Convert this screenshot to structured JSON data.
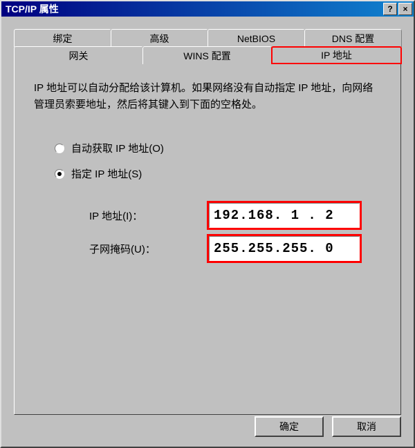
{
  "window": {
    "title": "TCP/IP 属性"
  },
  "titlebar": {
    "help_icon": "?",
    "close_icon": "×"
  },
  "tabs": {
    "back_row": [
      {
        "label": "绑定"
      },
      {
        "label": "高级"
      },
      {
        "label": "NetBIOS"
      },
      {
        "label": "DNS 配置"
      }
    ],
    "front_row": [
      {
        "label": "网关"
      },
      {
        "label": "WINS 配置"
      },
      {
        "label": "IP 地址",
        "active": true
      }
    ]
  },
  "panel": {
    "help_text": "IP 地址可以自动分配给该计算机。如果网络没有自动指定 IP 地址，向网络管理员索要地址，然后将其键入到下面的空格处。",
    "radio_auto": "自动获取 IP 地址(O)",
    "radio_specify": "指定 IP 地址(S)",
    "selected": "specify",
    "ip_label": "IP 地址(I)：",
    "ip_value": "192.168.  1 .  2",
    "subnet_label": "子网掩码(U)：",
    "subnet_value": "255.255.255.  0"
  },
  "buttons": {
    "ok": "确定",
    "cancel": "取消"
  },
  "colors": {
    "bg": "#c0c0c0",
    "titlebar_start": "#000080",
    "titlebar_end": "#1084d0",
    "highlight_border": "#ff0000",
    "text": "#000000"
  }
}
